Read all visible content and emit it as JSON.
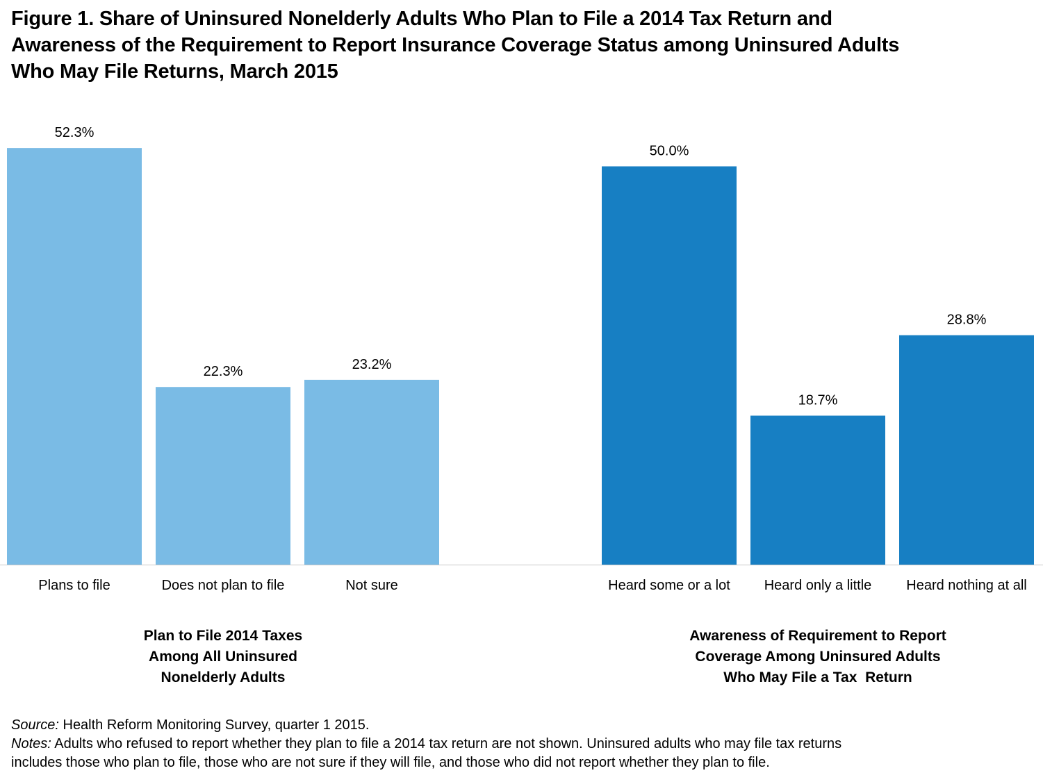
{
  "chart_data": {
    "type": "bar",
    "title_lines": [
      "Figure 1. Share of Uninsured Nonelderly Adults Who Plan to File a 2014 Tax Return and",
      "Awareness of the Requirement to Report Insurance Coverage Status among Uninsured Adults",
      "Who May File Returns, March 2015"
    ],
    "ylim": [
      0,
      60
    ],
    "grid": false,
    "groups": [
      {
        "label_lines": [
          "Plan to File 2014 Taxes",
          "Among All Uninsured",
          "Nonelderly Adults"
        ],
        "color": "#7abbe5",
        "categories": [
          "Plans to file",
          "Does not plan to file",
          "Not sure"
        ],
        "values": [
          52.3,
          22.3,
          23.2
        ],
        "value_labels": [
          "52.3%",
          "22.3%",
          "23.2%"
        ]
      },
      {
        "label_lines": [
          "Awareness of Requirement to Report",
          "Coverage Among Uninsured Adults",
          "Who May File a Tax  Return"
        ],
        "color": "#177fc3",
        "categories": [
          "Heard some or a lot",
          "Heard only a little",
          "Heard nothing at all"
        ],
        "values": [
          50.0,
          18.7,
          28.8
        ],
        "value_labels": [
          "50.0%",
          "18.7%",
          "28.8%"
        ]
      }
    ]
  },
  "footer": {
    "source_label": "Source:",
    "source_text": " Health Reform Monitoring Survey, quarter 1 2015.",
    "notes_label": "Notes:",
    "notes_text_1": " Adults who refused to report whether they plan to file a 2014 tax return are not shown.  Uninsured adults who may file tax returns",
    "notes_text_2": "includes those who plan to file, those who are not sure if they will file, and those who did not report whether they plan to file."
  }
}
